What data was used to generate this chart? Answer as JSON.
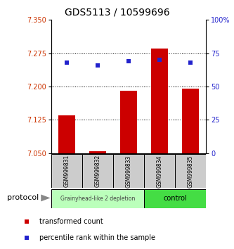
{
  "title": "GDS5113 / 10599696",
  "samples": [
    "GSM999831",
    "GSM999832",
    "GSM999833",
    "GSM999834",
    "GSM999835"
  ],
  "red_values": [
    7.135,
    7.055,
    7.19,
    7.285,
    7.195
  ],
  "blue_values": [
    68,
    66,
    69,
    70,
    68
  ],
  "ylim_left": [
    7.05,
    7.35
  ],
  "ylim_right": [
    0,
    100
  ],
  "yticks_left": [
    7.05,
    7.125,
    7.2,
    7.275,
    7.35
  ],
  "yticks_right": [
    0,
    25,
    50,
    75,
    100
  ],
  "ytick_labels_right": [
    "0",
    "25",
    "50",
    "75",
    "100%"
  ],
  "hlines": [
    7.125,
    7.2,
    7.275
  ],
  "bar_color": "#cc0000",
  "square_color": "#2222cc",
  "bar_bottom": 7.05,
  "group1_samples": [
    0,
    1,
    2
  ],
  "group2_samples": [
    3,
    4
  ],
  "group1_label": "Grainyhead-like 2 depletion",
  "group2_label": "control",
  "group1_color": "#bbffbb",
  "group2_color": "#44dd44",
  "protocol_label": "protocol",
  "legend_red": "transformed count",
  "legend_blue": "percentile rank within the sample",
  "tick_label_color_left": "#cc3300",
  "tick_label_color_right": "#2222cc",
  "bar_width": 0.55,
  "title_fontsize": 10
}
